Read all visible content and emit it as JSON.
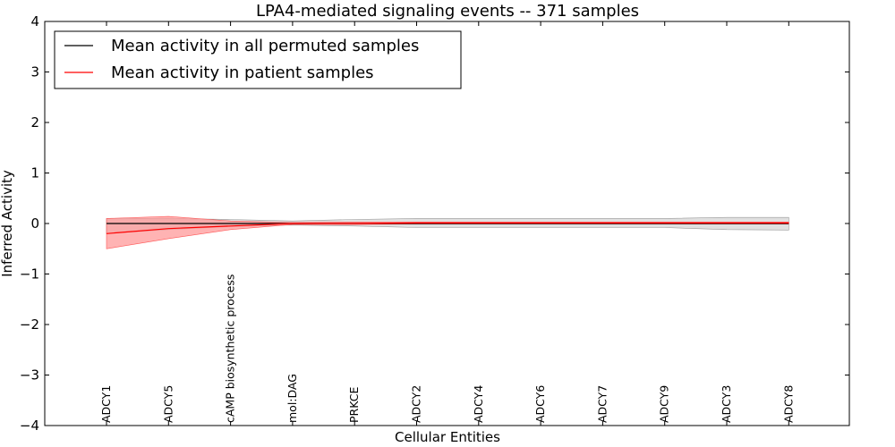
{
  "chart_data": {
    "type": "line",
    "title": "LPA4-mediated signaling events -- 371 samples",
    "xlabel": "Cellular Entities",
    "ylabel": "Inferred Activity",
    "ylim": [
      -4,
      4
    ],
    "yticks": [
      -4,
      -3,
      -2,
      -1,
      0,
      1,
      2,
      3,
      4
    ],
    "ytick_labels": [
      "−4",
      "−3",
      "−2",
      "−1",
      "0",
      "1",
      "2",
      "3",
      "4"
    ],
    "grid": false,
    "legend_position": "top-left",
    "categories": [
      "ADCY1",
      "ADCY5",
      "cAMP biosynthetic process",
      "mol:DAG",
      "PRKCE",
      "ADCY2",
      "ADCY4",
      "ADCY6",
      "ADCY7",
      "ADCY9",
      "ADCY3",
      "ADCY8"
    ],
    "series": [
      {
        "name": "Mean activity in all permuted samples",
        "color": "#000000",
        "values": [
          0.0,
          0.0,
          0.0,
          0.0,
          0.0,
          0.0,
          0.0,
          0.0,
          0.0,
          0.0,
          0.0,
          0.0
        ],
        "band_lower": [
          -0.2,
          -0.12,
          -0.06,
          -0.03,
          -0.05,
          -0.08,
          -0.08,
          -0.08,
          -0.08,
          -0.08,
          -0.12,
          -0.13
        ],
        "band_upper": [
          0.1,
          0.1,
          0.08,
          0.05,
          0.08,
          0.1,
          0.1,
          0.1,
          0.1,
          0.1,
          0.12,
          0.12
        ],
        "band_color": "#cccccc"
      },
      {
        "name": "Mean activity in patient samples",
        "color": "#ff0000",
        "values": [
          -0.2,
          -0.1,
          -0.05,
          0.0,
          0.0,
          0.01,
          0.01,
          0.01,
          0.01,
          0.01,
          0.01,
          0.01
        ],
        "band_lower": [
          -0.5,
          -0.3,
          -0.12,
          -0.02,
          -0.02,
          -0.01,
          -0.01,
          -0.01,
          -0.01,
          -0.01,
          -0.01,
          -0.01
        ],
        "band_upper": [
          0.1,
          0.14,
          0.05,
          0.02,
          0.03,
          0.03,
          0.03,
          0.03,
          0.03,
          0.03,
          0.03,
          0.03
        ],
        "band_color": "#ff9999"
      }
    ]
  }
}
